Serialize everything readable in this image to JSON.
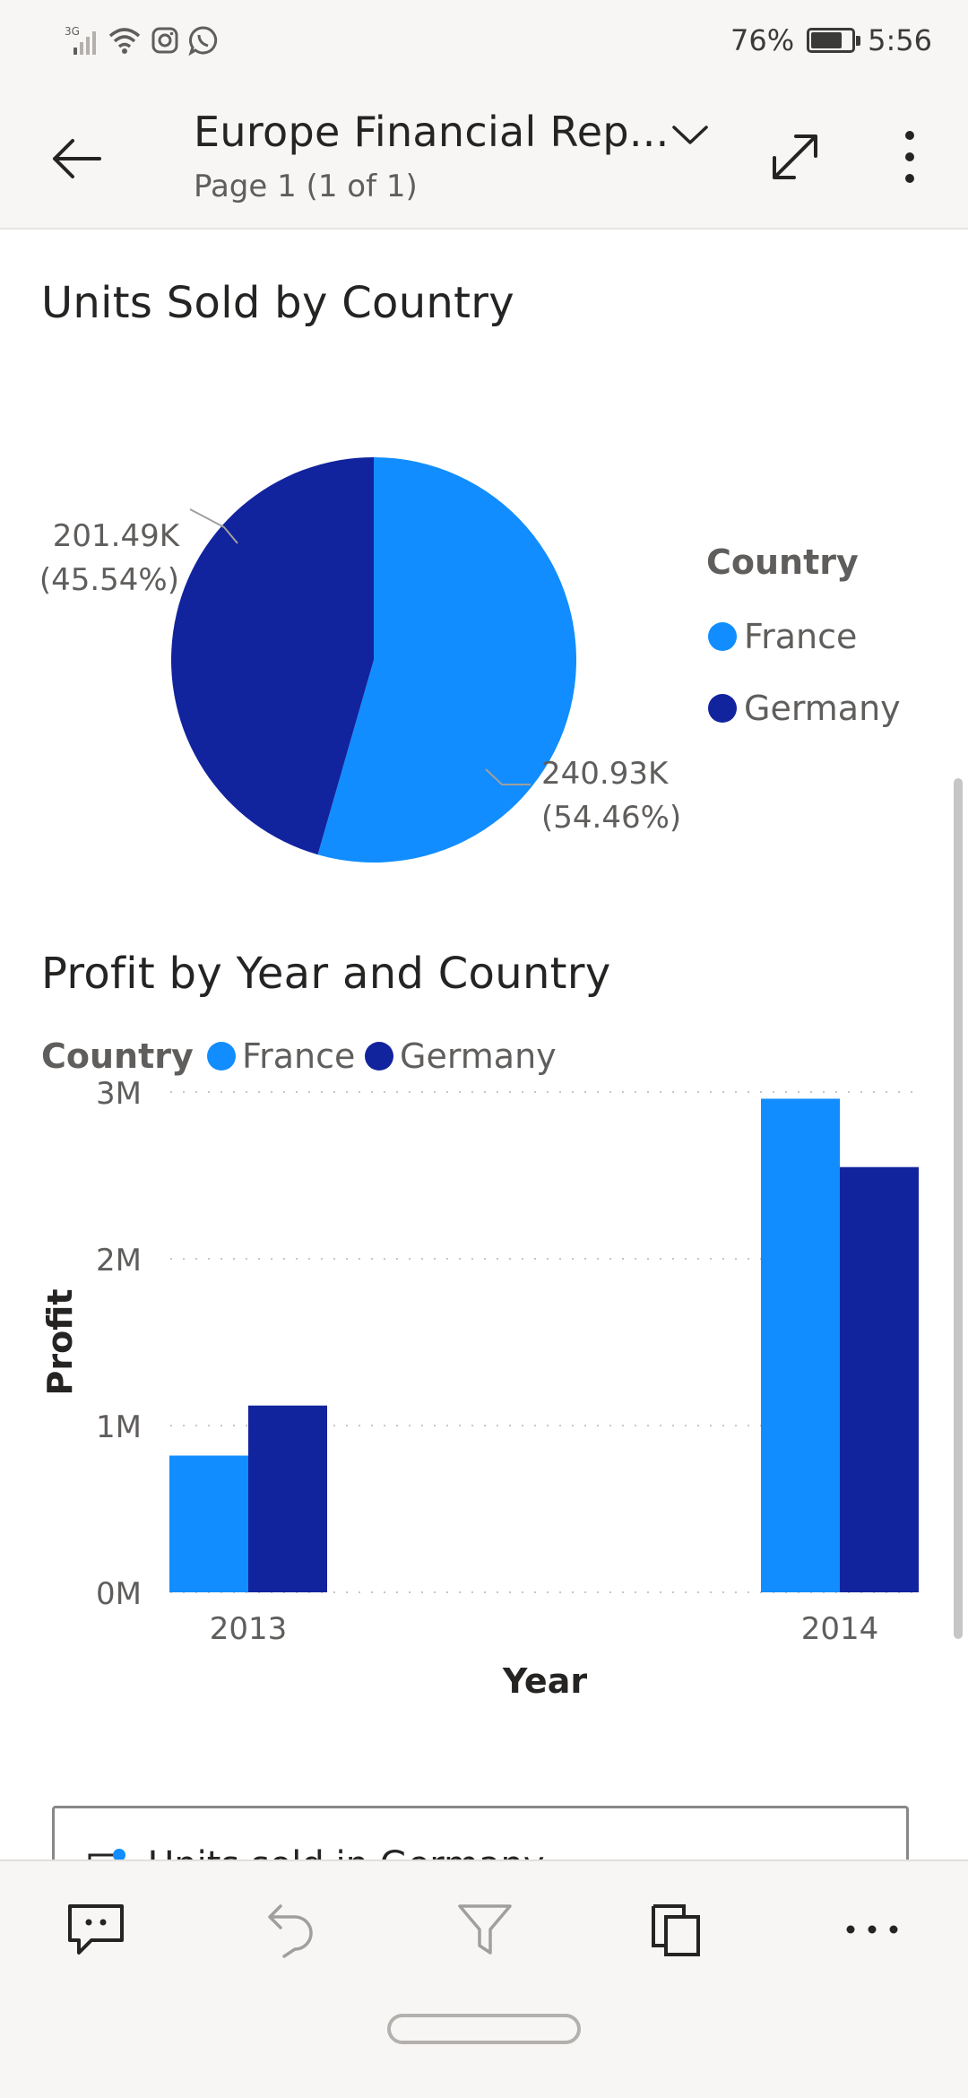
{
  "status_bar": {
    "network": "3G",
    "battery_percent": "76%",
    "battery_level": 0.76,
    "time": "5:56",
    "icons": [
      "signal-icon",
      "wifi-icon",
      "instagram-icon",
      "whatsapp-icon"
    ]
  },
  "header": {
    "title": "Europe Financial Rep...",
    "page_indicator": "Page 1 (1 of 1)",
    "icons": [
      "back-arrow-icon",
      "chevron-down-icon",
      "expand-icon",
      "more-vertical-icon"
    ]
  },
  "colors": {
    "france": "#118dff",
    "germany": "#12239e",
    "axis_text": "#605e5c",
    "gridline": "#c8c6c4"
  },
  "pie_visual": {
    "title": "Units Sold by Country",
    "legend_title": "Country",
    "label_germany_value": "201.49K",
    "label_germany_pct": "(45.54%)",
    "label_france_value": "240.93K",
    "label_france_pct": "(54.46%)"
  },
  "bar_visual": {
    "title": "Profit by Year and Country",
    "legend_title": "Country",
    "y_axis_title": "Profit",
    "x_axis_title": "Year",
    "y_ticks": [
      "0M",
      "1M",
      "2M",
      "3M"
    ]
  },
  "card": {
    "text": "Units sold in Germany"
  },
  "toolbar": {
    "icons": [
      "comment-icon",
      "undo-icon",
      "filter-icon",
      "copy-icon",
      "more-horizontal-icon"
    ]
  },
  "chart_data": [
    {
      "type": "pie",
      "title": "Units Sold by Country",
      "legend_title": "Country",
      "legend_position": "right",
      "categories": [
        "France",
        "Germany"
      ],
      "values": [
        240930,
        201490
      ],
      "labels": [
        "240.93K (54.46%)",
        "201.49K (45.54%)"
      ],
      "percentages": [
        54.46,
        45.54
      ]
    },
    {
      "type": "bar",
      "title": "Profit by Year and Country",
      "xlabel": "Year",
      "ylabel": "Profit",
      "categories": [
        "2013",
        "2014"
      ],
      "series": [
        {
          "name": "France",
          "values": [
            820000,
            2960000
          ]
        },
        {
          "name": "Germany",
          "values": [
            1120000,
            2550000
          ]
        }
      ],
      "ylim": [
        0,
        3000000
      ],
      "y_ticks": [
        "0M",
        "1M",
        "2M",
        "3M"
      ],
      "legend_title": "Country",
      "legend_position": "top-left",
      "grid": true
    }
  ]
}
